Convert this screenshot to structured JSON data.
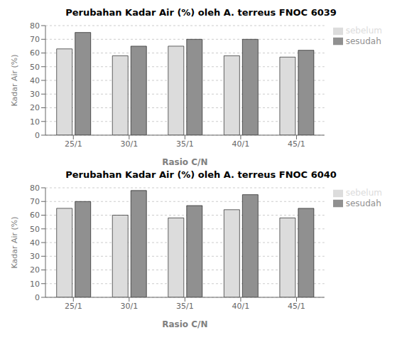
{
  "chart_data": [
    {
      "type": "bar",
      "title": "Perubahan Kadar Air (%) oleh A. terreus FNOC 6039",
      "xlabel": "Rasio C/N",
      "ylabel": "Kadar Air (%)",
      "categories": [
        "25/1",
        "30/1",
        "35/1",
        "40/1",
        "45/1"
      ],
      "series": [
        {
          "name": "sebelum",
          "color": "#dcdcdc",
          "values": [
            63,
            58,
            65,
            58,
            57
          ]
        },
        {
          "name": "sesudah",
          "color": "#909090",
          "values": [
            75,
            65,
            70,
            70,
            62
          ]
        }
      ],
      "ylim": [
        0,
        80
      ],
      "yticks": [
        0,
        10,
        20,
        30,
        40,
        50,
        60,
        70,
        80
      ],
      "grid": true,
      "legend": "right"
    },
    {
      "type": "bar",
      "title": "Perubahan Kadar Air (%) oleh A. terreus FNOC 6040",
      "xlabel": "Rasio C/N",
      "ylabel": "Kadar Air (%)",
      "categories": [
        "25/1",
        "30/1",
        "35/1",
        "40/1",
        "45/1"
      ],
      "series": [
        {
          "name": "sebelum",
          "color": "#dcdcdc",
          "values": [
            65,
            60,
            58,
            64,
            58
          ]
        },
        {
          "name": "sesudah",
          "color": "#909090",
          "values": [
            70,
            78,
            67,
            75,
            65
          ]
        }
      ],
      "ylim": [
        0,
        80
      ],
      "yticks": [
        0,
        10,
        20,
        30,
        40,
        50,
        60,
        70,
        80
      ],
      "grid": true,
      "legend": "right"
    }
  ]
}
